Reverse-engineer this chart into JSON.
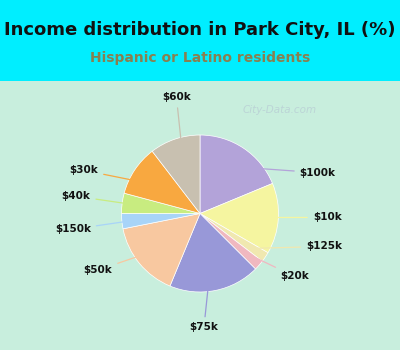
{
  "title": "Income distribution in Park City, IL (%)",
  "subtitle": "Hispanic or Latino residents",
  "watermark": "City-Data.com",
  "slices": [
    {
      "label": "$100k",
      "value": 18,
      "color": "#b3a3d9"
    },
    {
      "label": "$10k",
      "value": 14,
      "color": "#f5f5a0"
    },
    {
      "label": "$125k",
      "value": 2,
      "color": "#f0e8b0"
    },
    {
      "label": "$20k",
      "value": 2,
      "color": "#f0b8c0"
    },
    {
      "label": "$75k",
      "value": 18,
      "color": "#9898d8"
    },
    {
      "label": "$50k",
      "value": 15,
      "color": "#f8c8a0"
    },
    {
      "label": "$150k",
      "value": 3,
      "color": "#a8d4f8"
    },
    {
      "label": "$40k",
      "value": 4,
      "color": "#c8ec80"
    },
    {
      "label": "$30k",
      "value": 10,
      "color": "#f8a840"
    },
    {
      "label": "$60k",
      "value": 10,
      "color": "#c8c0b0"
    }
  ],
  "bg_top": "#00eeff",
  "bg_chart_left": "#c8eedd",
  "bg_chart_right": "#e8f8f8",
  "title_color": "#111111",
  "subtitle_color": "#888050",
  "watermark_color": "#b8ccd4",
  "label_color": "#111111",
  "startangle": 90,
  "title_fontsize": 13,
  "subtitle_fontsize": 10,
  "label_fontsize": 7.5
}
